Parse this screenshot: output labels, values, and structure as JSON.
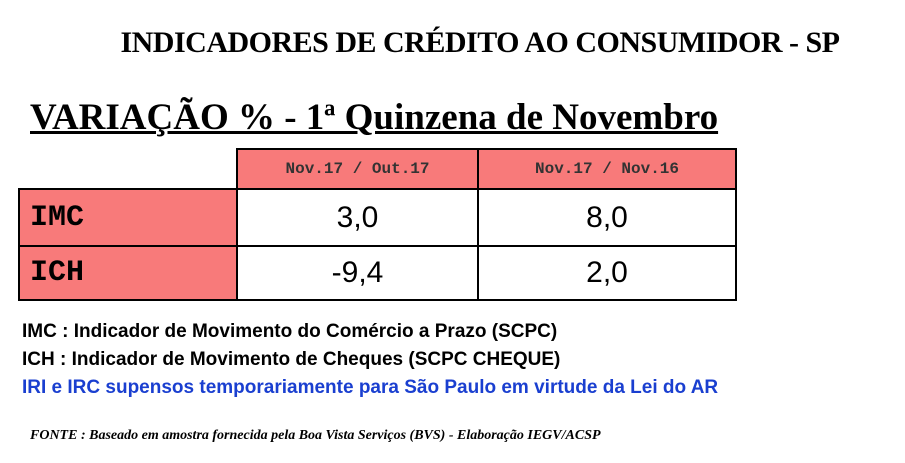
{
  "header": {
    "title": "INDICADORES DE CRÉDITO AO CONSUMIDOR - SP",
    "subtitle": "VARIAÇÃO %  - 1ª Quinzena de Novembro"
  },
  "table": {
    "columns": [
      "Nov.17 / Out.17",
      "Nov.17 / Nov.16"
    ],
    "rows": [
      [
        "IMC",
        "3,0",
        "8,0"
      ],
      [
        "ICH",
        "-9,4",
        "2,0"
      ]
    ]
  },
  "notes": [
    "IMC : Indicador de Movimento do Comércio a Prazo (SCPC)",
    "ICH : Indicador de Movimento de Cheques (SCPC CHEQUE)",
    "IRI e IRC supensos temporariamente para São Paulo em virtude da Lei do AR"
  ],
  "source": "FONTE : Baseado em amostra fornecida pela Boa Vista Serviços (BVS) - Elaboração IEGV/ACSP"
}
